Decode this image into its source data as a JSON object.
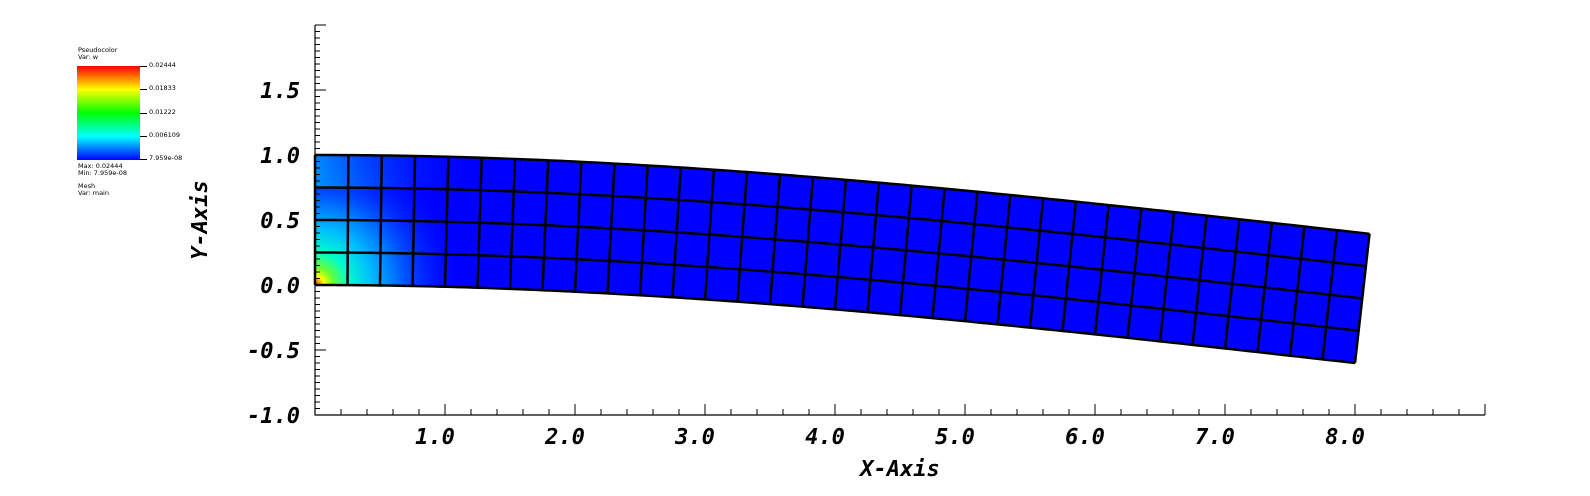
{
  "legend": {
    "plot_type": "Pseudocolor",
    "var_line": "Var: w",
    "tick_labels": [
      "0.02444",
      "0.01833",
      "0.01222",
      "0.006109",
      "7.959e-08"
    ],
    "max_line": "Max: 0.02444",
    "min_line": "Min: 7.959e-08",
    "mesh_title": "Mesh",
    "mesh_var_line": "Var: main",
    "colormap": [
      "#ff0000",
      "#ffff00",
      "#00ff00",
      "#00ffff",
      "#0000ff"
    ]
  },
  "chart_data": {
    "type": "heatmap",
    "xlabel": "X-Axis",
    "ylabel": "Y-Axis",
    "xlim": [
      0,
      9
    ],
    "ylim": [
      -1.0,
      2.0
    ],
    "x_ticks": [
      "1.0",
      "2.0",
      "3.0",
      "4.0",
      "5.0",
      "6.0",
      "7.0",
      "8.0"
    ],
    "y_ticks": [
      "-1.0",
      "-0.5",
      "0.0",
      "0.5",
      "1.0",
      "1.5"
    ],
    "mesh": {
      "nx": 32,
      "ny": 4,
      "length": 8.0,
      "height": 1.0,
      "tip_deflection": -0.6,
      "variable": "w",
      "min": 7.959e-08,
      "max": 0.02444
    }
  }
}
